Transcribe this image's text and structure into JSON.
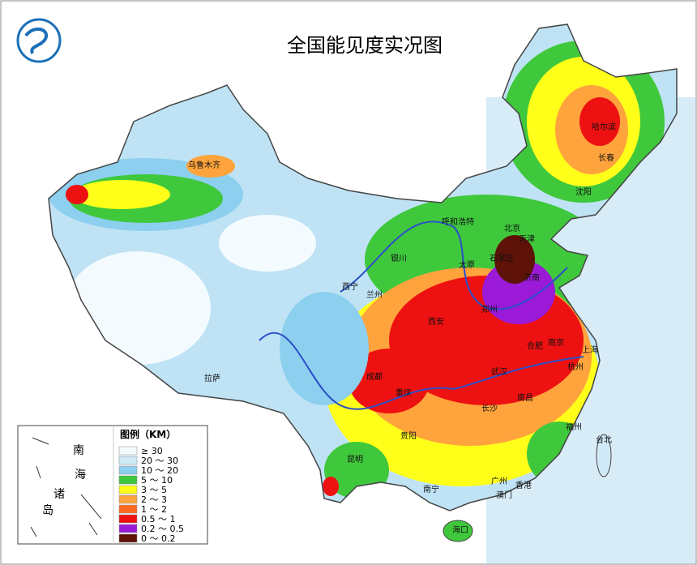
{
  "title": "全国能见度实况图",
  "legend": {
    "title": "图例（KM）",
    "items": [
      {
        "label": "≥ 30",
        "color": "#f4fbff"
      },
      {
        "label": "20 ～ 30",
        "color": "#cfe9f7"
      },
      {
        "label": "10 ～ 20",
        "color": "#8ccfee"
      },
      {
        "label": "5 ～ 10",
        "color": "#3fc83c"
      },
      {
        "label": "3 ～ 5",
        "color": "#ffff1a"
      },
      {
        "label": "2 ～ 3",
        "color": "#ffa43c"
      },
      {
        "label": "1 ～ 2",
        "color": "#ff6a20"
      },
      {
        "label": "0.5 ～ 1",
        "color": "#ee1111"
      },
      {
        "label": "0.2 ～ 0.5",
        "color": "#9a1ad8"
      },
      {
        "label": "0 ～ 0.2",
        "color": "#5e1208"
      }
    ]
  },
  "cities": [
    "乌鲁木齐",
    "哈尔滨",
    "长春",
    "沈阳",
    "北京",
    "天津",
    "呼和浩特",
    "石家庄",
    "济南",
    "太原",
    "银川",
    "西宁",
    "兰州",
    "西安",
    "郑州",
    "合肥",
    "南京",
    "上海",
    "杭州",
    "武汉",
    "成都",
    "重庆",
    "拉萨",
    "长沙",
    "南昌",
    "福州",
    "台北",
    "贵阳",
    "昆明",
    "南宁",
    "广州",
    "香港",
    "澳门",
    "海口"
  ],
  "inset": {
    "labels": [
      "南",
      "海",
      "诸",
      "岛"
    ]
  }
}
